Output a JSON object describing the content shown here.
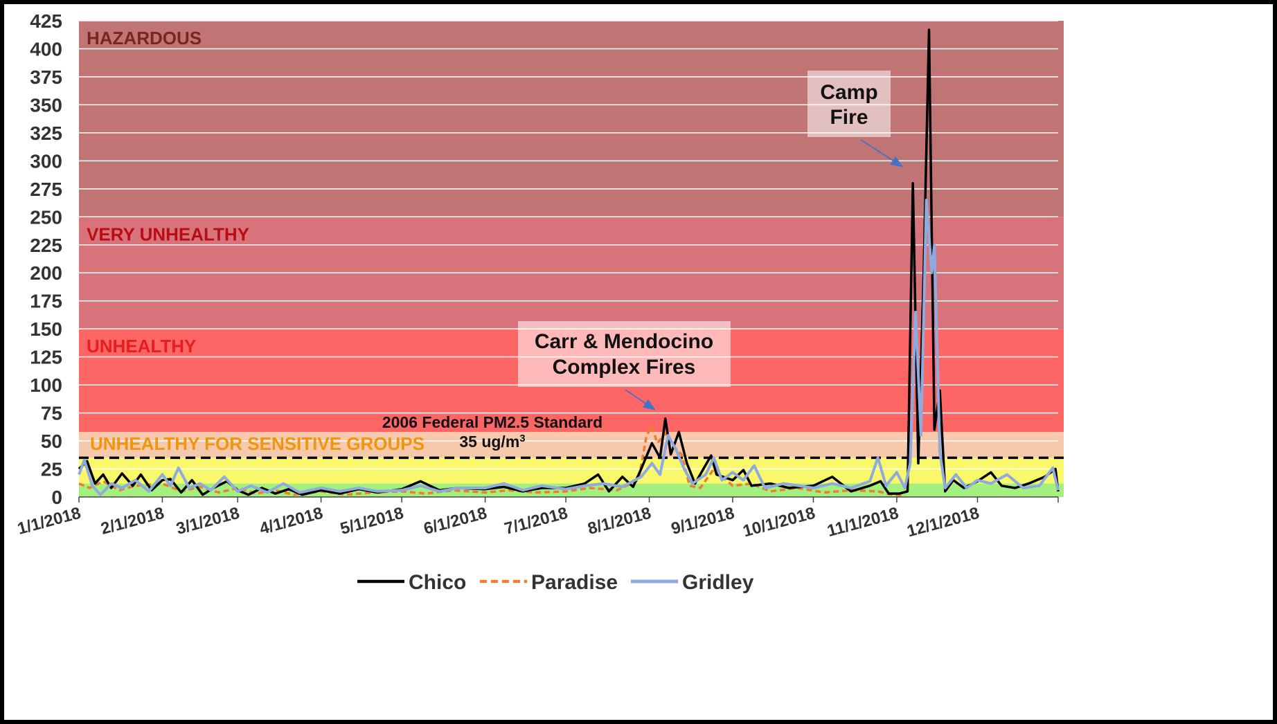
{
  "chart_data": {
    "type": "line",
    "ylim": [
      0,
      425
    ],
    "yticks": [
      0,
      25,
      50,
      75,
      100,
      125,
      150,
      175,
      200,
      225,
      250,
      275,
      300,
      325,
      350,
      375,
      400,
      425
    ],
    "xlim": [
      "2018-01-01",
      "2018-12-31"
    ],
    "xtick_labels": [
      "1/1/2018",
      "2/1/2018",
      "3/1/2018",
      "4/1/2018",
      "5/1/2018",
      "6/1/2018",
      "7/1/2018",
      "8/1/2018",
      "9/1/2018",
      "10/1/2018",
      "11/1/2018",
      "12/1/2018"
    ],
    "xtick_dates": [
      "2018-01-01",
      "2018-02-01",
      "2018-03-01",
      "2018-04-01",
      "2018-05-01",
      "2018-06-01",
      "2018-07-01",
      "2018-08-01",
      "2018-09-01",
      "2018-10-01",
      "2018-11-01",
      "2018-12-01"
    ],
    "grid": true,
    "legend_position": "bottom",
    "zones": [
      {
        "label": "",
        "from": 0,
        "to": 12,
        "color": "#a3f07f"
      },
      {
        "label": "",
        "from": 12,
        "to": 35,
        "color": "#f8f86a"
      },
      {
        "label": "UNHEALTHY FOR SENSITIVE GROUPS",
        "from": 35,
        "to": 58,
        "color": "#f6c9ad",
        "label_color": "#f0960e"
      },
      {
        "label": "UNHEALTHY",
        "from": 58,
        "to": 150,
        "color": "#fe6565",
        "label_color": "#e51e1e"
      },
      {
        "label": "VERY UNHEALTHY",
        "from": 150,
        "to": 250,
        "color": "#d8737b",
        "label_color": "#b80d15"
      },
      {
        "label": "HAZARDOUS",
        "from": 250,
        "to": 425,
        "color": "#c07474",
        "label_color": "#7a2424"
      }
    ],
    "reference_line": {
      "value": 35,
      "label_line1": "2006 Federal PM2.5 Standard",
      "label_line2": "35 ug/m",
      "label_sup": "3"
    },
    "annotations": [
      {
        "lines": [
          "Carr & Mendocino",
          "Complex Fires"
        ],
        "arrow_to": {
          "x": "2018-08-03",
          "y": 78
        }
      },
      {
        "lines": [
          "Camp",
          "Fire"
        ],
        "arrow_to": {
          "x": "2018-11-03",
          "y": 295
        }
      }
    ],
    "series": [
      {
        "name": "Chico",
        "color": "#000000",
        "dash": "solid",
        "points": [
          [
            "2018-01-01",
            25
          ],
          [
            "2018-01-04",
            32
          ],
          [
            "2018-01-07",
            12
          ],
          [
            "2018-01-10",
            20
          ],
          [
            "2018-01-13",
            8
          ],
          [
            "2018-01-17",
            21
          ],
          [
            "2018-01-21",
            10
          ],
          [
            "2018-01-24",
            20
          ],
          [
            "2018-01-28",
            6
          ],
          [
            "2018-02-01",
            15
          ],
          [
            "2018-02-04",
            16
          ],
          [
            "2018-02-08",
            4
          ],
          [
            "2018-02-12",
            15
          ],
          [
            "2018-02-16",
            2
          ],
          [
            "2018-02-20",
            8
          ],
          [
            "2018-02-25",
            14
          ],
          [
            "2018-03-01",
            6
          ],
          [
            "2018-03-05",
            2
          ],
          [
            "2018-03-10",
            8
          ],
          [
            "2018-03-15",
            3
          ],
          [
            "2018-03-20",
            7
          ],
          [
            "2018-03-25",
            2
          ],
          [
            "2018-04-01",
            6
          ],
          [
            "2018-04-08",
            3
          ],
          [
            "2018-04-15",
            7
          ],
          [
            "2018-04-22",
            4
          ],
          [
            "2018-05-01",
            7
          ],
          [
            "2018-05-08",
            14
          ],
          [
            "2018-05-15",
            6
          ],
          [
            "2018-05-22",
            8
          ],
          [
            "2018-06-01",
            7
          ],
          [
            "2018-06-08",
            9
          ],
          [
            "2018-06-15",
            5
          ],
          [
            "2018-06-22",
            8
          ],
          [
            "2018-07-01",
            8
          ],
          [
            "2018-07-08",
            12
          ],
          [
            "2018-07-13",
            20
          ],
          [
            "2018-07-17",
            5
          ],
          [
            "2018-07-22",
            18
          ],
          [
            "2018-07-26",
            9
          ],
          [
            "2018-07-29",
            25
          ],
          [
            "2018-08-02",
            48
          ],
          [
            "2018-08-05",
            35
          ],
          [
            "2018-08-07",
            70
          ],
          [
            "2018-08-09",
            38
          ],
          [
            "2018-08-12",
            58
          ],
          [
            "2018-08-15",
            30
          ],
          [
            "2018-08-18",
            12
          ],
          [
            "2018-08-24",
            37
          ],
          [
            "2018-08-26",
            20
          ],
          [
            "2018-09-01",
            15
          ],
          [
            "2018-09-05",
            24
          ],
          [
            "2018-09-08",
            10
          ],
          [
            "2018-09-15",
            12
          ],
          [
            "2018-09-22",
            8
          ],
          [
            "2018-10-01",
            10
          ],
          [
            "2018-10-08",
            18
          ],
          [
            "2018-10-15",
            5
          ],
          [
            "2018-10-22",
            10
          ],
          [
            "2018-10-26",
            14
          ],
          [
            "2018-10-29",
            3
          ],
          [
            "2018-11-02",
            3
          ],
          [
            "2018-11-05",
            5
          ],
          [
            "2018-11-07",
            280
          ],
          [
            "2018-11-09",
            30
          ],
          [
            "2018-11-11",
            200
          ],
          [
            "2018-11-13",
            417
          ],
          [
            "2018-11-15",
            60
          ],
          [
            "2018-11-17",
            95
          ],
          [
            "2018-11-19",
            5
          ],
          [
            "2018-11-22",
            15
          ],
          [
            "2018-11-26",
            8
          ],
          [
            "2018-12-01",
            14
          ],
          [
            "2018-12-06",
            22
          ],
          [
            "2018-12-10",
            10
          ],
          [
            "2018-12-15",
            8
          ],
          [
            "2018-12-20",
            12
          ],
          [
            "2018-12-26",
            18
          ],
          [
            "2018-12-30",
            25
          ],
          [
            "2018-12-31",
            5
          ]
        ]
      },
      {
        "name": "Paradise",
        "color": "#ed7d31",
        "dash": "dashed",
        "points": [
          [
            "2018-01-01",
            12
          ],
          [
            "2018-01-05",
            8
          ],
          [
            "2018-01-10",
            14
          ],
          [
            "2018-01-16",
            6
          ],
          [
            "2018-01-22",
            10
          ],
          [
            "2018-02-01",
            12
          ],
          [
            "2018-02-08",
            5
          ],
          [
            "2018-02-15",
            9
          ],
          [
            "2018-02-22",
            4
          ],
          [
            "2018-03-01",
            8
          ],
          [
            "2018-03-08",
            3
          ],
          [
            "2018-03-15",
            6
          ],
          [
            "2018-03-22",
            2
          ],
          [
            "2018-04-01",
            5
          ],
          [
            "2018-04-10",
            2
          ],
          [
            "2018-04-20",
            4
          ],
          [
            "2018-05-01",
            5
          ],
          [
            "2018-05-10",
            3
          ],
          [
            "2018-05-20",
            6
          ],
          [
            "2018-06-01",
            4
          ],
          [
            "2018-06-10",
            6
          ],
          [
            "2018-06-20",
            4
          ],
          [
            "2018-07-01",
            5
          ],
          [
            "2018-07-10",
            8
          ],
          [
            "2018-07-20",
            6
          ],
          [
            "2018-07-28",
            15
          ],
          [
            "2018-07-31",
            55
          ],
          [
            "2018-08-02",
            63
          ],
          [
            "2018-08-04",
            48
          ],
          [
            "2018-08-07",
            57
          ],
          [
            "2018-08-10",
            45
          ],
          [
            "2018-08-13",
            38
          ],
          [
            "2018-08-16",
            10
          ],
          [
            "2018-08-20",
            8
          ],
          [
            "2018-08-25",
            25
          ],
          [
            "2018-09-01",
            10
          ],
          [
            "2018-09-08",
            12
          ],
          [
            "2018-09-15",
            5
          ],
          [
            "2018-09-25",
            8
          ],
          [
            "2018-10-05",
            4
          ],
          [
            "2018-10-15",
            6
          ],
          [
            "2018-10-25",
            5
          ],
          [
            "2018-10-30",
            2
          ],
          [
            "2018-11-04",
            1
          ]
        ]
      },
      {
        "name": "Gridley",
        "color": "#8faadc",
        "dash": "solid",
        "points": [
          [
            "2018-01-01",
            20
          ],
          [
            "2018-01-03",
            33
          ],
          [
            "2018-01-06",
            10
          ],
          [
            "2018-01-09",
            2
          ],
          [
            "2018-01-13",
            12
          ],
          [
            "2018-01-17",
            8
          ],
          [
            "2018-01-22",
            15
          ],
          [
            "2018-01-27",
            5
          ],
          [
            "2018-02-01",
            20
          ],
          [
            "2018-02-04",
            10
          ],
          [
            "2018-02-07",
            26
          ],
          [
            "2018-02-11",
            8
          ],
          [
            "2018-02-15",
            12
          ],
          [
            "2018-02-19",
            6
          ],
          [
            "2018-02-24",
            18
          ],
          [
            "2018-03-01",
            5
          ],
          [
            "2018-03-06",
            10
          ],
          [
            "2018-03-12",
            4
          ],
          [
            "2018-03-18",
            12
          ],
          [
            "2018-03-24",
            4
          ],
          [
            "2018-04-01",
            8
          ],
          [
            "2018-04-08",
            5
          ],
          [
            "2018-04-15",
            8
          ],
          [
            "2018-04-22",
            5
          ],
          [
            "2018-05-01",
            6
          ],
          [
            "2018-05-08",
            10
          ],
          [
            "2018-05-15",
            5
          ],
          [
            "2018-05-22",
            8
          ],
          [
            "2018-06-01",
            8
          ],
          [
            "2018-06-08",
            12
          ],
          [
            "2018-06-15",
            6
          ],
          [
            "2018-06-22",
            10
          ],
          [
            "2018-07-01",
            7
          ],
          [
            "2018-07-08",
            10
          ],
          [
            "2018-07-15",
            12
          ],
          [
            "2018-07-22",
            9
          ],
          [
            "2018-07-29",
            18
          ],
          [
            "2018-08-02",
            30
          ],
          [
            "2018-08-05",
            20
          ],
          [
            "2018-08-08",
            55
          ],
          [
            "2018-08-11",
            42
          ],
          [
            "2018-08-14",
            25
          ],
          [
            "2018-08-17",
            12
          ],
          [
            "2018-08-22",
            20
          ],
          [
            "2018-08-25",
            35
          ],
          [
            "2018-08-28",
            15
          ],
          [
            "2018-09-01",
            22
          ],
          [
            "2018-09-05",
            15
          ],
          [
            "2018-09-09",
            28
          ],
          [
            "2018-09-13",
            8
          ],
          [
            "2018-09-20",
            12
          ],
          [
            "2018-10-01",
            8
          ],
          [
            "2018-10-08",
            12
          ],
          [
            "2018-10-15",
            8
          ],
          [
            "2018-10-22",
            14
          ],
          [
            "2018-10-25",
            35
          ],
          [
            "2018-10-28",
            10
          ],
          [
            "2018-11-01",
            22
          ],
          [
            "2018-11-04",
            8
          ],
          [
            "2018-11-06",
            30
          ],
          [
            "2018-11-08",
            165
          ],
          [
            "2018-11-10",
            55
          ],
          [
            "2018-11-12",
            265
          ],
          [
            "2018-11-14",
            200
          ],
          [
            "2018-11-15",
            225
          ],
          [
            "2018-11-17",
            40
          ],
          [
            "2018-11-19",
            8
          ],
          [
            "2018-11-23",
            20
          ],
          [
            "2018-11-27",
            8
          ],
          [
            "2018-12-01",
            15
          ],
          [
            "2018-12-06",
            12
          ],
          [
            "2018-12-12",
            20
          ],
          [
            "2018-12-18",
            8
          ],
          [
            "2018-12-24",
            10
          ],
          [
            "2018-12-29",
            26
          ],
          [
            "2018-12-31",
            6
          ]
        ]
      }
    ]
  }
}
